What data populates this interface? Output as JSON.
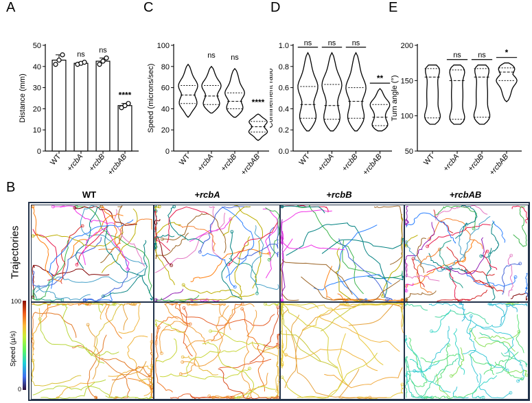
{
  "panels": {
    "A": "A",
    "C": "C",
    "D": "D",
    "E": "E",
    "B": "B"
  },
  "chart_data": [
    {
      "id": "A",
      "type": "bar",
      "categories": [
        "WT",
        "+rcbA",
        "+rcbB",
        "+rcbAB"
      ],
      "values": [
        43,
        41.5,
        42.5,
        21.5
      ],
      "points": [
        [
          41,
          43,
          45.5
        ],
        [
          41,
          41.5,
          42
        ],
        [
          41,
          42.5,
          44
        ],
        [
          20.5,
          21.5,
          22.5
        ]
      ],
      "ylabel": "Distance (mm)",
      "ylim": [
        0,
        50
      ],
      "yticks": [
        "0",
        "10",
        "20",
        "30",
        "40",
        "50"
      ],
      "significance": [
        "",
        "ns",
        "ns",
        "****"
      ]
    },
    {
      "id": "C",
      "type": "violin",
      "categories": [
        "WT",
        "+rcbA",
        "+rcbB",
        "+rcbAB"
      ],
      "ylabel": "Speed (microns/sec)",
      "ylim": [
        0,
        100
      ],
      "yticks": [
        "0",
        "20",
        "40",
        "60",
        "80",
        "100"
      ],
      "range": [
        [
          32,
          82
        ],
        [
          36,
          80
        ],
        [
          32,
          78
        ],
        [
          10,
          35
        ]
      ],
      "quartiles": [
        [
          45,
          53,
          62
        ],
        [
          44,
          52,
          62
        ],
        [
          40,
          47,
          55
        ],
        [
          18,
          23,
          28
        ]
      ],
      "significance": [
        "",
        "ns",
        "ns",
        "****"
      ]
    },
    {
      "id": "D",
      "type": "violin",
      "categories": [
        "WT",
        "+rcbA",
        "+rcbB",
        "+rcbAB"
      ],
      "ylabel": "Confinement ratio",
      "ylim": [
        0.0,
        1.0
      ],
      "yticks": [
        "0.0",
        "0.2",
        "0.4",
        "0.6",
        "0.8",
        "1.0"
      ],
      "range": [
        [
          0.19,
          0.93
        ],
        [
          0.19,
          0.93
        ],
        [
          0.19,
          0.93
        ],
        [
          0.19,
          0.59
        ]
      ],
      "quartiles": [
        [
          0.31,
          0.44,
          0.61
        ],
        [
          0.3,
          0.43,
          0.63
        ],
        [
          0.31,
          0.47,
          0.6
        ],
        [
          0.24,
          0.32,
          0.44
        ]
      ],
      "significance": [
        "ns",
        "ns",
        "ns",
        "**"
      ]
    },
    {
      "id": "E",
      "type": "violin",
      "categories": [
        "WT",
        "+rcbA",
        "+rcbB",
        "+rcbAB"
      ],
      "ylabel": "Turn angle (°)",
      "ylim": [
        50,
        200
      ],
      "yticks": [
        "50",
        "100",
        "150",
        "200"
      ],
      "range": [
        [
          88,
          172
        ],
        [
          88,
          172
        ],
        [
          88,
          172
        ],
        [
          120,
          175
        ]
      ],
      "quartiles": [
        [
          97,
          155,
          167
        ],
        [
          95,
          150,
          165
        ],
        [
          98,
          155,
          167
        ],
        [
          150,
          162,
          168
        ]
      ],
      "significance": [
        "",
        "ns",
        "ns",
        "*"
      ]
    }
  ],
  "grid": {
    "columns": [
      "WT",
      "+rcbA",
      "+rcbB",
      "+rcbAB"
    ],
    "row_label": "Trajectories",
    "speed_label": "Speed (µ/s)",
    "speed_max": "100",
    "speed_min": "0"
  }
}
